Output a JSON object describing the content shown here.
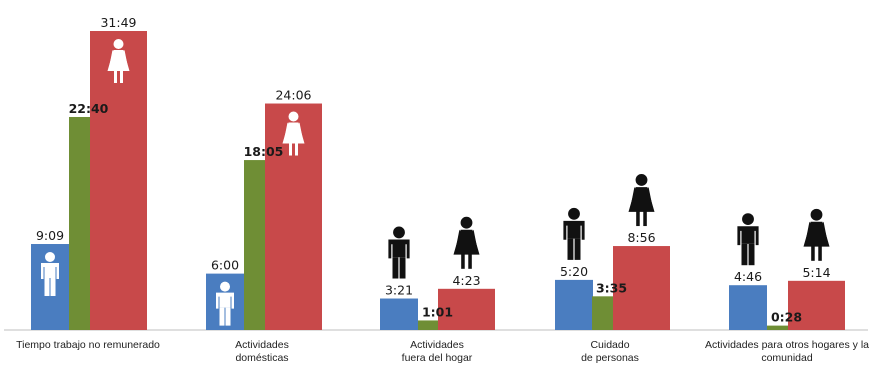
{
  "chart_data": {
    "type": "bar",
    "title": "",
    "xlabel": "",
    "ylabel": "",
    "ylim_hours": [
      0,
      33
    ],
    "grid": false,
    "legend": "none",
    "categories": [
      [
        "Tiempo trabajo no remunerado"
      ],
      [
        "Actividades",
        "domésticas"
      ],
      [
        "Actividades",
        "fuera del hogar"
      ],
      [
        "Cuidado",
        "de personas"
      ],
      [
        "Actividades para otros hogares y la",
        "comunidad"
      ]
    ],
    "series": [
      {
        "color": "#4a7dc0",
        "icon": "man-icon",
        "labels": [
          "9:09",
          "6:00",
          "3:21",
          "5:20",
          "4:46"
        ],
        "values_hours": [
          9.15,
          6.0,
          3.35,
          5.333,
          4.767
        ]
      },
      {
        "color": "#6f8e35",
        "labels": [
          "22:40",
          "18:05",
          "1:01",
          "3:35",
          "0:28"
        ],
        "values_hours": [
          22.667,
          18.083,
          1.017,
          3.583,
          0.467
        ]
      },
      {
        "color": "#c8494a",
        "icon": "woman-icon",
        "labels": [
          "31:49",
          "24:06",
          "4:23",
          "8:56",
          "5:14"
        ],
        "values_hours": [
          31.817,
          24.1,
          4.383,
          8.933,
          5.233
        ]
      }
    ]
  }
}
